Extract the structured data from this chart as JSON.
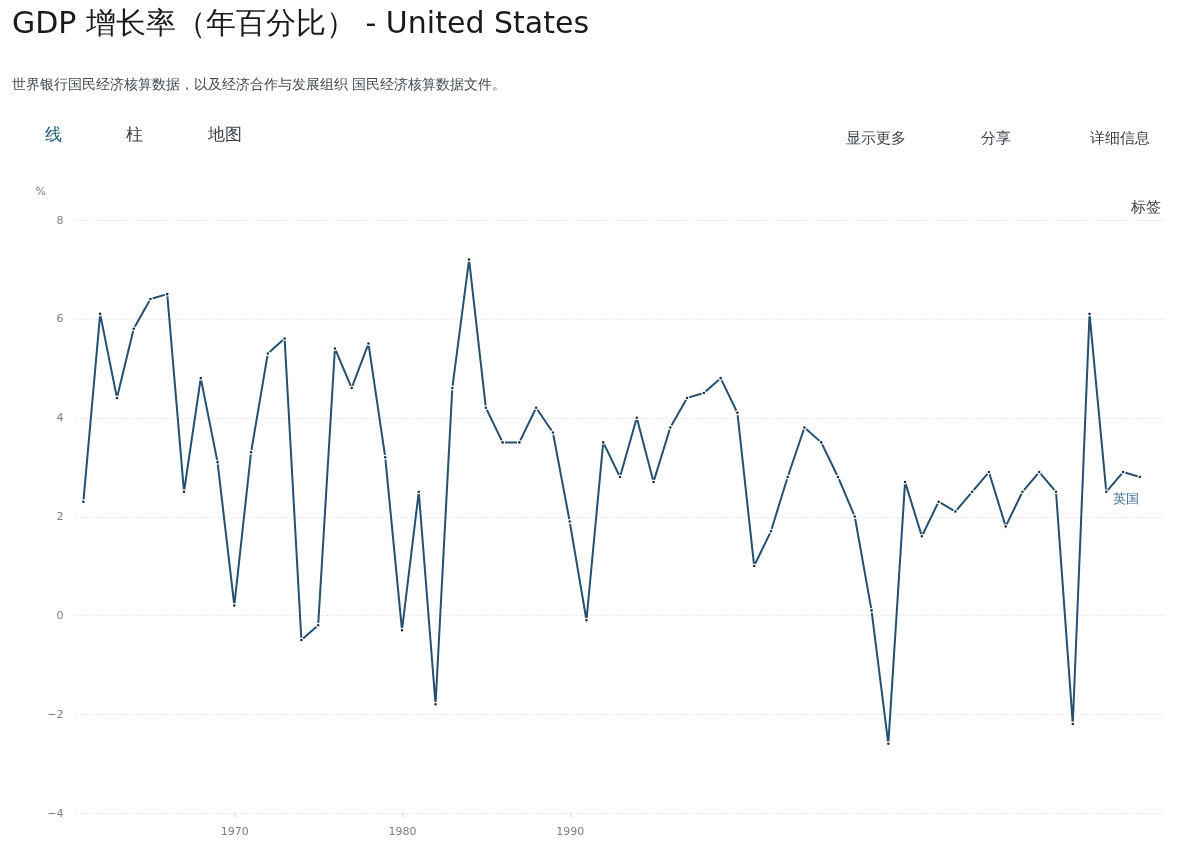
{
  "chart_data": {
    "type": "line",
    "title": "GDP 增长率（年百分比） - United States",
    "subtitle": "世界银行国民经济核算数据，以及经济合作与发展组织 国民经济核算数据文件。",
    "ylabel": "%",
    "x": [
      1961,
      1962,
      1963,
      1964,
      1965,
      1966,
      1967,
      1968,
      1969,
      1970,
      1971,
      1972,
      1973,
      1974,
      1975,
      1976,
      1977,
      1978,
      1979,
      1980,
      1981,
      1982,
      1983,
      1984,
      1985,
      1986,
      1987,
      1988,
      1989,
      1990,
      1991,
      1992,
      1993,
      1994,
      1995,
      1996,
      1997,
      1998,
      1999,
      2000,
      2001,
      2002,
      2003,
      2004,
      2005,
      2006,
      2007,
      2008,
      2009,
      2010,
      2011,
      2012,
      2013,
      2014,
      2015,
      2016,
      2017,
      2018,
      2019,
      2020,
      2021,
      2022,
      2023,
      2024
    ],
    "series": [
      {
        "name": "英国",
        "color": "#26506f",
        "values": [
          2.3,
          6.1,
          4.4,
          5.8,
          6.4,
          6.5,
          2.5,
          4.8,
          3.1,
          0.2,
          3.3,
          5.3,
          5.6,
          -0.5,
          -0.2,
          5.4,
          4.6,
          5.5,
          3.2,
          -0.3,
          2.5,
          -1.8,
          4.6,
          7.2,
          4.2,
          3.5,
          3.5,
          4.2,
          3.7,
          1.9,
          -0.1,
          3.5,
          2.8,
          4.0,
          2.7,
          3.8,
          4.4,
          4.5,
          4.8,
          4.1,
          1.0,
          1.7,
          2.8,
          3.8,
          3.5,
          2.8,
          2.0,
          0.1,
          -2.6,
          2.7,
          1.6,
          2.3,
          2.1,
          2.5,
          2.9,
          1.8,
          2.5,
          2.9,
          2.5,
          -2.2,
          6.1,
          2.5,
          2.9,
          2.8
        ]
      }
    ],
    "xlim": [
      1960.5,
      2025.5
    ],
    "ylim": [
      -4,
      8
    ],
    "xticks": [
      1970,
      1980,
      1990
    ],
    "yticks": [
      -4,
      -2,
      0,
      2,
      4,
      6,
      8
    ],
    "grid": "y",
    "marker": "circle",
    "line_style": "solid",
    "annotations": [
      "线",
      "柱",
      "地图",
      "显示更多",
      "分享",
      "详细信息",
      "标签"
    ]
  }
}
